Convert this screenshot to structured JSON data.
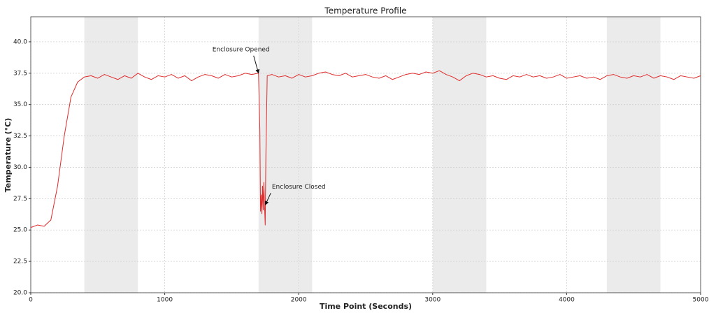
{
  "chart_data": {
    "type": "line",
    "title": "Temperature Profile",
    "x_label": "Time Point (Seconds)",
    "y_label": "Temperature (°C)",
    "xlim": [
      0,
      5000
    ],
    "ylim": [
      20,
      42
    ],
    "xticks": [
      0,
      1000,
      2000,
      3000,
      4000,
      5000
    ],
    "yticks": [
      {
        "value": 20,
        "label": "20.0"
      },
      22.5,
      {
        "value": 25,
        "label": "25.0"
      },
      27.5,
      {
        "value": 30,
        "label": "30.0"
      },
      32.5,
      {
        "value": 35,
        "label": "35.0"
      },
      37.5,
      {
        "value": 40,
        "label": "40.0"
      }
    ],
    "grid": true,
    "shaded_spans": [
      [
        400,
        800
      ],
      [
        1700,
        2100
      ],
      [
        3000,
        3400
      ],
      [
        4300,
        4700
      ]
    ],
    "shade_color": "#ebebeb",
    "x": [
      0,
      50,
      100,
      150,
      200,
      250,
      300,
      350,
      400,
      450,
      500,
      550,
      600,
      650,
      700,
      750,
      800,
      850,
      900,
      950,
      1000,
      1050,
      1100,
      1150,
      1200,
      1250,
      1300,
      1350,
      1400,
      1450,
      1500,
      1550,
      1600,
      1650,
      1700,
      1710,
      1715,
      1720,
      1725,
      1730,
      1735,
      1740,
      1745,
      1750,
      1755,
      1765,
      1800,
      1850,
      1900,
      1950,
      2000,
      2050,
      2100,
      2150,
      2200,
      2250,
      2300,
      2350,
      2400,
      2450,
      2500,
      2550,
      2600,
      2650,
      2700,
      2750,
      2800,
      2850,
      2900,
      2950,
      3000,
      3050,
      3100,
      3150,
      3200,
      3250,
      3300,
      3350,
      3400,
      3450,
      3500,
      3550,
      3600,
      3650,
      3700,
      3750,
      3800,
      3850,
      3900,
      3950,
      4000,
      4050,
      4100,
      4150,
      4200,
      4250,
      4300,
      4350,
      4400,
      4450,
      4500,
      4550,
      4600,
      4650,
      4700,
      4750,
      4800,
      4850,
      4900,
      4950,
      5000
    ],
    "series": [
      {
        "name": "Temperature",
        "color": "#e02a2a",
        "values": [
          25.2,
          25.4,
          25.3,
          25.8,
          28.5,
          32.5,
          35.6,
          36.8,
          37.2,
          37.3,
          37.1,
          37.4,
          37.2,
          37.0,
          37.3,
          37.1,
          37.5,
          37.2,
          37.0,
          37.3,
          37.2,
          37.4,
          37.1,
          37.3,
          36.9,
          37.2,
          37.4,
          37.3,
          37.1,
          37.4,
          37.2,
          37.3,
          37.5,
          37.4,
          37.5,
          33.0,
          26.5,
          27.8,
          26.3,
          28.5,
          26.6,
          28.8,
          26.9,
          25.4,
          31.0,
          37.3,
          37.4,
          37.2,
          37.3,
          37.1,
          37.4,
          37.2,
          37.3,
          37.5,
          37.6,
          37.4,
          37.3,
          37.5,
          37.2,
          37.3,
          37.4,
          37.2,
          37.1,
          37.3,
          37.0,
          37.2,
          37.4,
          37.5,
          37.4,
          37.6,
          37.5,
          37.7,
          37.4,
          37.2,
          36.9,
          37.3,
          37.5,
          37.4,
          37.2,
          37.3,
          37.1,
          37.0,
          37.3,
          37.2,
          37.4,
          37.2,
          37.3,
          37.1,
          37.2,
          37.4,
          37.1,
          37.2,
          37.3,
          37.1,
          37.2,
          37.0,
          37.3,
          37.4,
          37.2,
          37.1,
          37.3,
          37.2,
          37.4,
          37.1,
          37.3,
          37.2,
          37.0,
          37.3,
          37.2,
          37.1,
          37.3
        ]
      }
    ],
    "annotations": [
      {
        "text": "Enclosure Opened",
        "x": 1700,
        "y": 37.5
      },
      {
        "text": "Enclosure Closed",
        "x": 1750,
        "y": 27.0
      }
    ]
  }
}
